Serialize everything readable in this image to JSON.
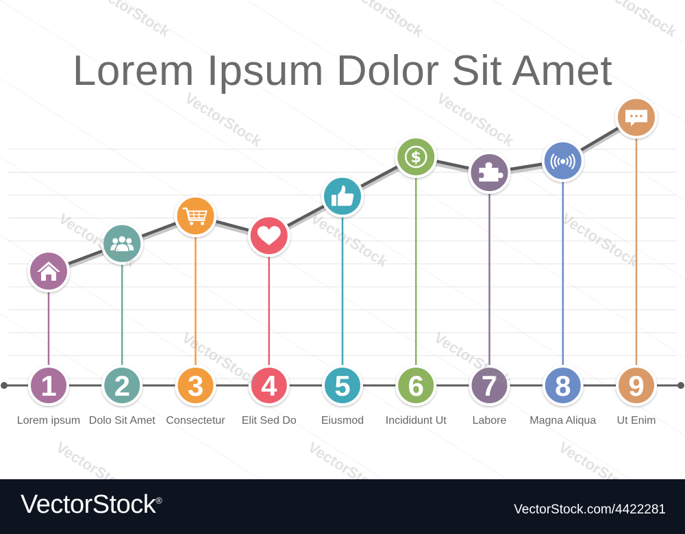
{
  "title": "Lorem Ipsum Dolor Sit Amet",
  "watermark_text": "VectorStock",
  "chart_data": {
    "type": "line",
    "title": "Lorem Ipsum Dolor Sit Amet",
    "categories": [
      "Lorem ipsum",
      "Dolo Sit Amet",
      "Consectetur",
      "Elit Sed Do",
      "Eiusmod",
      "Incididunt Ut",
      "Labore",
      "Magna Aliqua",
      "Ut Enim"
    ],
    "numbers": [
      "1",
      "2",
      "3",
      "4",
      "5",
      "6",
      "7",
      "8",
      "9"
    ],
    "values": [
      2.9,
      3.6,
      4.3,
      3.8,
      4.8,
      5.8,
      5.4,
      5.7,
      6.8
    ],
    "ylim": [
      0,
      7
    ],
    "grid": true,
    "colors": [
      "#a9729c",
      "#6fa9a3",
      "#f39c3c",
      "#ee5d6c",
      "#3fa8b8",
      "#8db35e",
      "#8a7694",
      "#6c8cc8",
      "#d99a68"
    ],
    "icons": [
      "home-icon",
      "people-icon",
      "cart-icon",
      "heart-icon",
      "thumbs-up-icon",
      "dollar-icon",
      "puzzle-icon",
      "wireless-icon",
      "chat-icon"
    ]
  },
  "footer": {
    "brand": "VectorStock",
    "brand_mark": "®",
    "id_text": "VectorStock.com/4422281"
  }
}
